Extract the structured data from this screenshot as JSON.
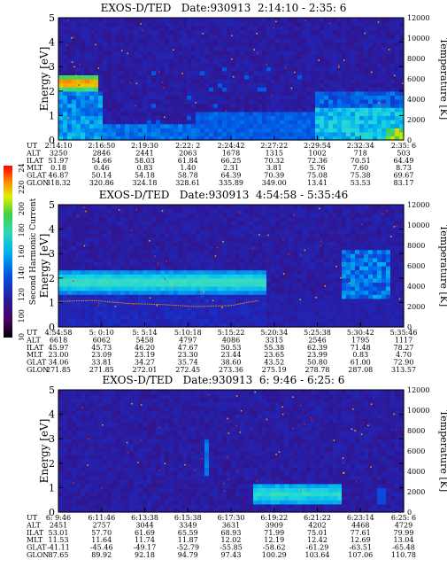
{
  "colorbar": {
    "label": "Second Harmonic Current",
    "ticks": [
      "80",
      "100",
      "120",
      "140",
      "160",
      "180",
      "200",
      "220",
      "240"
    ]
  },
  "panels": [
    {
      "title": "EXOS-D/TED   Date:930913  2:14:10 - 2:35: 6",
      "ylabel_left": "Energy [eV]",
      "ylabel_right": "Temperature [K]",
      "ylim": [
        0,
        5
      ],
      "y2lim": [
        0,
        12000
      ],
      "yticks": [
        "0",
        "1",
        "2",
        "3",
        "4",
        "5"
      ],
      "y2ticks": [
        "0",
        "2000",
        "4000",
        "6000",
        "8000",
        "10000",
        "12000"
      ],
      "row_labels": [
        "UT",
        "ALT",
        "ILAT",
        "MLT",
        "GLAT",
        "GLON"
      ],
      "columns": [
        [
          "2:14:10",
          "3250",
          "51.97",
          "0.18",
          "46.87",
          "318.32"
        ],
        [
          "2:16:50",
          "2846",
          "54.66",
          "0.46",
          "50.14",
          "320.86"
        ],
        [
          "2:19:30",
          "2441",
          "58.03",
          "0.83",
          "54.18",
          "324.18"
        ],
        [
          "2:22: 2",
          "2063",
          "61.84",
          "1.40",
          "58.78",
          "328.61"
        ],
        [
          "2:24:42",
          "1678",
          "66.25",
          "2.31",
          "64.39",
          "335.89"
        ],
        [
          "2:27:22",
          "1315",
          "70.32",
          "3.81",
          "70.39",
          "349.00"
        ],
        [
          "2:29:54",
          "1002",
          "72.36",
          "5.76",
          "75.08",
          "13.41"
        ],
        [
          "2:32:34",
          "718",
          "70.51",
          "7.60",
          "75.38",
          "53.53"
        ],
        [
          "2:35: 6",
          "503",
          "64.49",
          "8.73",
          "69.67",
          "83.17"
        ]
      ]
    },
    {
      "title": "EXOS-D/TED   Date:930913  4:54:58 - 5:35:46",
      "ylabel_left": "Energy [eV]",
      "ylabel_right": "Temperature [K]",
      "ylim": [
        0,
        5
      ],
      "y2lim": [
        0,
        12000
      ],
      "yticks": [
        "0",
        "1",
        "2",
        "3",
        "4",
        "5"
      ],
      "y2ticks": [
        "0",
        "2000",
        "4000",
        "6000",
        "8000",
        "10000",
        "12000"
      ],
      "row_labels": [
        "UT",
        "ALT",
        "ILAT",
        "MLT",
        "GLAT",
        "GLON"
      ],
      "columns": [
        [
          "4:54:58",
          "6618",
          "45.97",
          "23.00",
          "34.06",
          "271.85"
        ],
        [
          "5: 0:10",
          "6062",
          "45.73",
          "23.09",
          "33.81",
          "271.85"
        ],
        [
          "5: 5:14",
          "5458",
          "46.20",
          "23.19",
          "34.27",
          "272.01"
        ],
        [
          "5:10:18",
          "4797",
          "47.67",
          "23.30",
          "35.74",
          "272.45"
        ],
        [
          "5:15:22",
          "4086",
          "50.53",
          "23.44",
          "38.60",
          "273.36"
        ],
        [
          "5:20:34",
          "3315",
          "55.38",
          "23.65",
          "43.52",
          "275.19"
        ],
        [
          "5:25:38",
          "2546",
          "62.39",
          "23.99",
          "50.80",
          "278.78"
        ],
        [
          "5:30:42",
          "1795",
          "71.48",
          "0.83",
          "61.00",
          "287.08"
        ],
        [
          "5:35:46",
          "1117",
          "78.27",
          "4.70",
          "72.90",
          "313.57"
        ]
      ]
    },
    {
      "title": "EXOS-D/TED   Date:930913  6: 9:46 - 6:25: 6",
      "ylabel_left": "Energy [eV]",
      "ylabel_right": "Temperature [K]",
      "ylim": [
        0,
        5
      ],
      "y2lim": [
        0,
        12000
      ],
      "yticks": [
        "0",
        "1",
        "2",
        "3",
        "4",
        "5"
      ],
      "y2ticks": [
        "0",
        "2000",
        "4000",
        "6000",
        "8000",
        "10000",
        "12000"
      ],
      "row_labels": [
        "UT",
        "ALT",
        "ILAT",
        "MLT",
        "GLAT",
        "GLON"
      ],
      "columns": [
        [
          "6: 9:46",
          "2451",
          "53.01",
          "11.53",
          "-41.11",
          "87.65"
        ],
        [
          "6:11:46",
          "2757",
          "57.70",
          "11.64",
          "-45.46",
          "89.92"
        ],
        [
          "6:13:38",
          "3044",
          "61.69",
          "11.74",
          "-49.17",
          "92.18"
        ],
        [
          "6:15:38",
          "3349",
          "65.59",
          "11.87",
          "-52.79",
          "94.79"
        ],
        [
          "6:17:30",
          "3631",
          "68.93",
          "12.02",
          "-55.85",
          "97.43"
        ],
        [
          "6:19:22",
          "3909",
          "71.99",
          "12.19",
          "-58.62",
          "100.29"
        ],
        [
          "6:21:22",
          "4202",
          "75.01",
          "12.42",
          "-61.29",
          "103.64"
        ],
        [
          "6:23:14",
          "4468",
          "77.61",
          "12.69",
          "-63.51",
          "107.06"
        ],
        [
          "6:25: 6",
          "4729",
          "79.99",
          "13.04",
          "-65.48",
          "110.78"
        ]
      ]
    }
  ],
  "chart_data": [
    {
      "type": "heatmap",
      "title": "EXOS-D/TED   Date:930913  2:14:10 - 2:35: 6",
      "ylabel": "Energy [eV]",
      "y2label": "Temperature [K]",
      "ylim": [
        0,
        5
      ],
      "y2lim": [
        0,
        12000
      ],
      "x": [
        "2:14:10",
        "2:16:50",
        "2:19:30",
        "2:22: 2",
        "2:24:42",
        "2:27:22",
        "2:29:54",
        "2:32:34",
        "2:35: 6"
      ],
      "series": [
        {
          "values": [
            [
              0.0,
              2.4,
              230
            ],
            [
              0.05,
              2.4,
              220
            ],
            [
              0.1,
              2.4,
              200
            ],
            [
              0.12,
              1.0,
              150
            ],
            [
              0.78,
              0.7,
              140
            ],
            [
              0.85,
              0.8,
              150
            ],
            [
              0.9,
              0.8,
              160
            ],
            [
              0.95,
              0.5,
              190
            ],
            [
              1.0,
              0.3,
              210
            ]
          ]
        }
      ]
    },
    {
      "type": "heatmap",
      "title": "EXOS-D/TED   Date:930913  4:54:58 - 5:35:46",
      "ylabel": "Energy [eV]",
      "y2label": "Temperature [K]",
      "ylim": [
        0,
        5
      ],
      "y2lim": [
        0,
        12000
      ],
      "x": [
        "4:54:58",
        "5: 0:10",
        "5: 5:14",
        "5:10:18",
        "5:15:22",
        "5:20:34",
        "5:25:38",
        "5:30:42",
        "5:35:46"
      ],
      "series": [
        {
          "values": [
            [
              0.0,
              1.8,
              165
            ],
            [
              0.25,
              1.8,
              165
            ],
            [
              0.4,
              1.8,
              165
            ],
            [
              0.58,
              1.8,
              160
            ],
            [
              0.85,
              2.2,
              140
            ],
            [
              0.9,
              2.0,
              150
            ]
          ]
        },
        {
          "name": "",
          "values": [
            [
              0.0,
              2500
            ],
            [
              0.1,
              2600
            ],
            [
              0.2,
              2300
            ],
            [
              0.3,
              2200
            ],
            [
              0.4,
              2000
            ],
            [
              0.5,
              2100
            ],
            [
              0.58,
              2600
            ]
          ]
        }
      ]
    },
    {
      "type": "heatmap",
      "title": "EXOS-D/TED   Date:930913  6: 9:46 - 6:25: 6",
      "ylabel": "Energy [eV]",
      "y2label": "Temperature [K]",
      "ylim": [
        0,
        5
      ],
      "y2lim": [
        0,
        12000
      ],
      "x": [
        "6: 9:46",
        "6:11:46",
        "6:13:38",
        "6:15:38",
        "6:17:30",
        "6:19:22",
        "6:21:22",
        "6:23:14",
        "6:25: 6"
      ],
      "series": [
        {
          "values": [
            [
              0.5,
              2.2,
              130
            ],
            [
              0.6,
              0.8,
              150
            ],
            [
              0.7,
              0.8,
              155
            ],
            [
              0.78,
              0.9,
              150
            ],
            [
              0.85,
              0.9,
              140
            ],
            [
              0.95,
              0.5,
              130
            ]
          ]
        }
      ]
    }
  ]
}
